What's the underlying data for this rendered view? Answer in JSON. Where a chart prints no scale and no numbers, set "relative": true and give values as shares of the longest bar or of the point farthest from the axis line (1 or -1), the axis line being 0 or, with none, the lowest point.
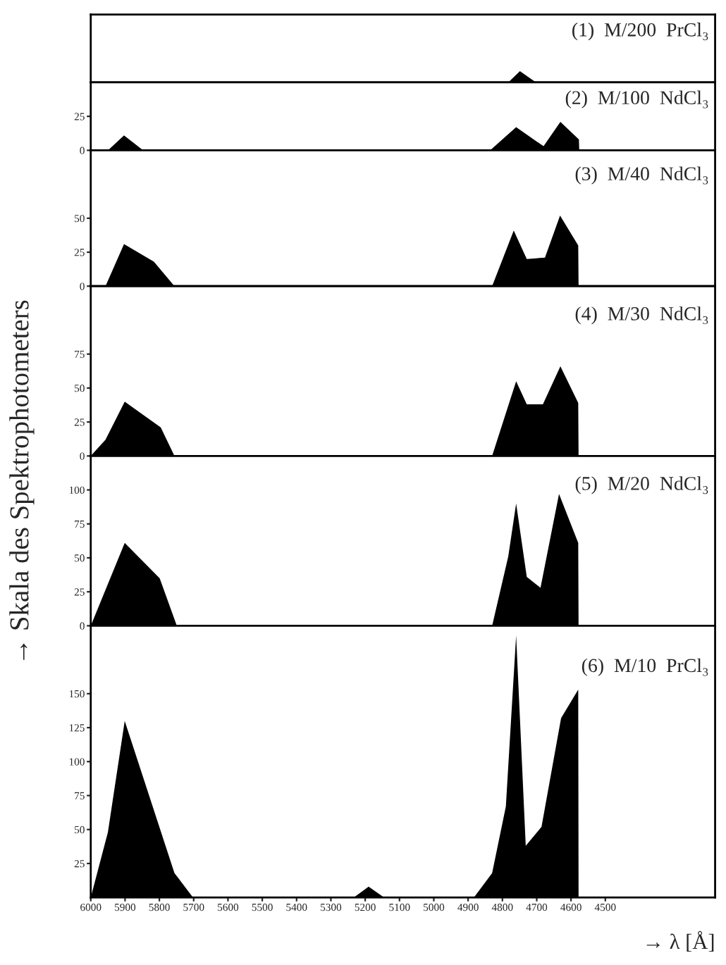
{
  "chart_data": [
    {
      "type": "area",
      "relative": true,
      "tick_labels": false,
      "xlim": [
        6000,
        4180
      ],
      "xticks": [
        6000,
        5900,
        5800,
        5700,
        5600,
        5500,
        5400,
        5300,
        5200,
        5100,
        5000,
        4900,
        4800,
        4700,
        4600,
        4500
      ],
      "annotations": [
        "(1)  M/200  PrCl₃"
      ],
      "series": [
        {
          "color": "#000000",
          "x": [
            6000,
            4783,
            4749,
            4702,
            4180
          ],
          "values": [
            0,
            0,
            1,
            0,
            0
          ]
        }
      ]
    },
    {
      "type": "area",
      "tick_labels": "y",
      "xlim": [
        6000,
        4180
      ],
      "xticks": [
        6000,
        5900,
        5800,
        5700,
        5600,
        5500,
        5400,
        5300,
        5200,
        5100,
        5000,
        4900,
        4800,
        4700,
        4600,
        4500
      ],
      "ylim": [
        0,
        50
      ],
      "yticks": [
        0,
        25
      ],
      "annotations": [
        "(2)  M/100  NdCl₃"
      ],
      "series": [
        {
          "color": "#000000",
          "x": [
            6000,
            5950,
            5903,
            5847,
            4836,
            4760,
            4680,
            4631,
            4577,
            4576
          ],
          "values": [
            0,
            0,
            11,
            0,
            0,
            17,
            3,
            21,
            8,
            0
          ]
        }
      ]
    },
    {
      "type": "area",
      "tick_labels": "y",
      "xlim": [
        6000,
        4180
      ],
      "xticks": [
        6000,
        5900,
        5800,
        5700,
        5600,
        5500,
        5400,
        5300,
        5200,
        5100,
        5000,
        4900,
        4800,
        4700,
        4600,
        4500
      ],
      "ylim": [
        0,
        100
      ],
      "yticks": [
        0,
        25,
        50
      ],
      "annotations": [
        "(3)  M/40  NdCl₃"
      ],
      "series": [
        {
          "color": "#000000",
          "x": [
            6000,
            5957,
            5903,
            5816,
            5756,
            4830,
            4767,
            4729,
            4676,
            4632,
            4579,
            4578
          ],
          "values": [
            0,
            0,
            31,
            18,
            0,
            0,
            41,
            20,
            21,
            52,
            30,
            0
          ]
        }
      ]
    },
    {
      "type": "area",
      "tick_labels": "y",
      "xlim": [
        6000,
        4180
      ],
      "xticks": [
        6000,
        5900,
        5800,
        5700,
        5600,
        5500,
        5400,
        5300,
        5200,
        5100,
        5000,
        4900,
        4800,
        4700,
        4600,
        4500
      ],
      "ylim": [
        0,
        125
      ],
      "yticks": [
        0,
        25,
        50,
        75
      ],
      "annotations": [
        "(4)  M/30  NdCl₃"
      ],
      "series": [
        {
          "color": "#000000",
          "x": [
            6000,
            5957,
            5901,
            5796,
            5756,
            4830,
            4760,
            4729,
            4682,
            4631,
            4579,
            4578
          ],
          "values": [
            0,
            12,
            40,
            21,
            0,
            0,
            55,
            38,
            38,
            66,
            39,
            0
          ]
        }
      ]
    },
    {
      "type": "area",
      "tick_labels": "y",
      "xlim": [
        6000,
        4180
      ],
      "xticks": [
        6000,
        5900,
        5800,
        5700,
        5600,
        5500,
        5400,
        5300,
        5200,
        5100,
        5000,
        4900,
        4800,
        4700,
        4600,
        4500
      ],
      "ylim": [
        0,
        125
      ],
      "yticks": [
        0,
        25,
        50,
        75,
        100
      ],
      "ylabel": "→ Skala des Spektrophotometers",
      "annotations": [
        "(5)  M/20  NdCl₃"
      ],
      "series": [
        {
          "color": "#000000",
          "x": [
            6000,
            5901,
            5799,
            5749,
            4830,
            4783,
            4760,
            4729,
            4689,
            4635,
            4579,
            4578
          ],
          "values": [
            0,
            61,
            35,
            0,
            0,
            51,
            90,
            36,
            28,
            97,
            61,
            0
          ]
        }
      ]
    },
    {
      "type": "area",
      "xlim": [
        6000,
        4180
      ],
      "xticks": [
        6000,
        5900,
        5800,
        5700,
        5600,
        5500,
        5400,
        5300,
        5200,
        5100,
        5000,
        4900,
        4800,
        4700,
        4600,
        4500
      ],
      "ylim": [
        0,
        200
      ],
      "yticks": [
        25,
        50,
        75,
        100,
        125,
        150
      ],
      "xlabel": "→ λ [Å]",
      "annotations": [
        "(6)  M/10  PrCl₃"
      ],
      "series": [
        {
          "color": "#000000",
          "x": [
            6000,
            5950,
            5901,
            5756,
            5702,
            5233,
            5190,
            5145,
            4883,
            4830,
            4790,
            4760,
            4732,
            4686,
            4629,
            4579,
            4578
          ],
          "values": [
            0,
            48,
            130,
            18,
            0,
            0,
            8,
            0,
            0,
            18,
            67,
            193,
            38,
            52,
            132,
            153,
            0
          ]
        }
      ]
    }
  ]
}
